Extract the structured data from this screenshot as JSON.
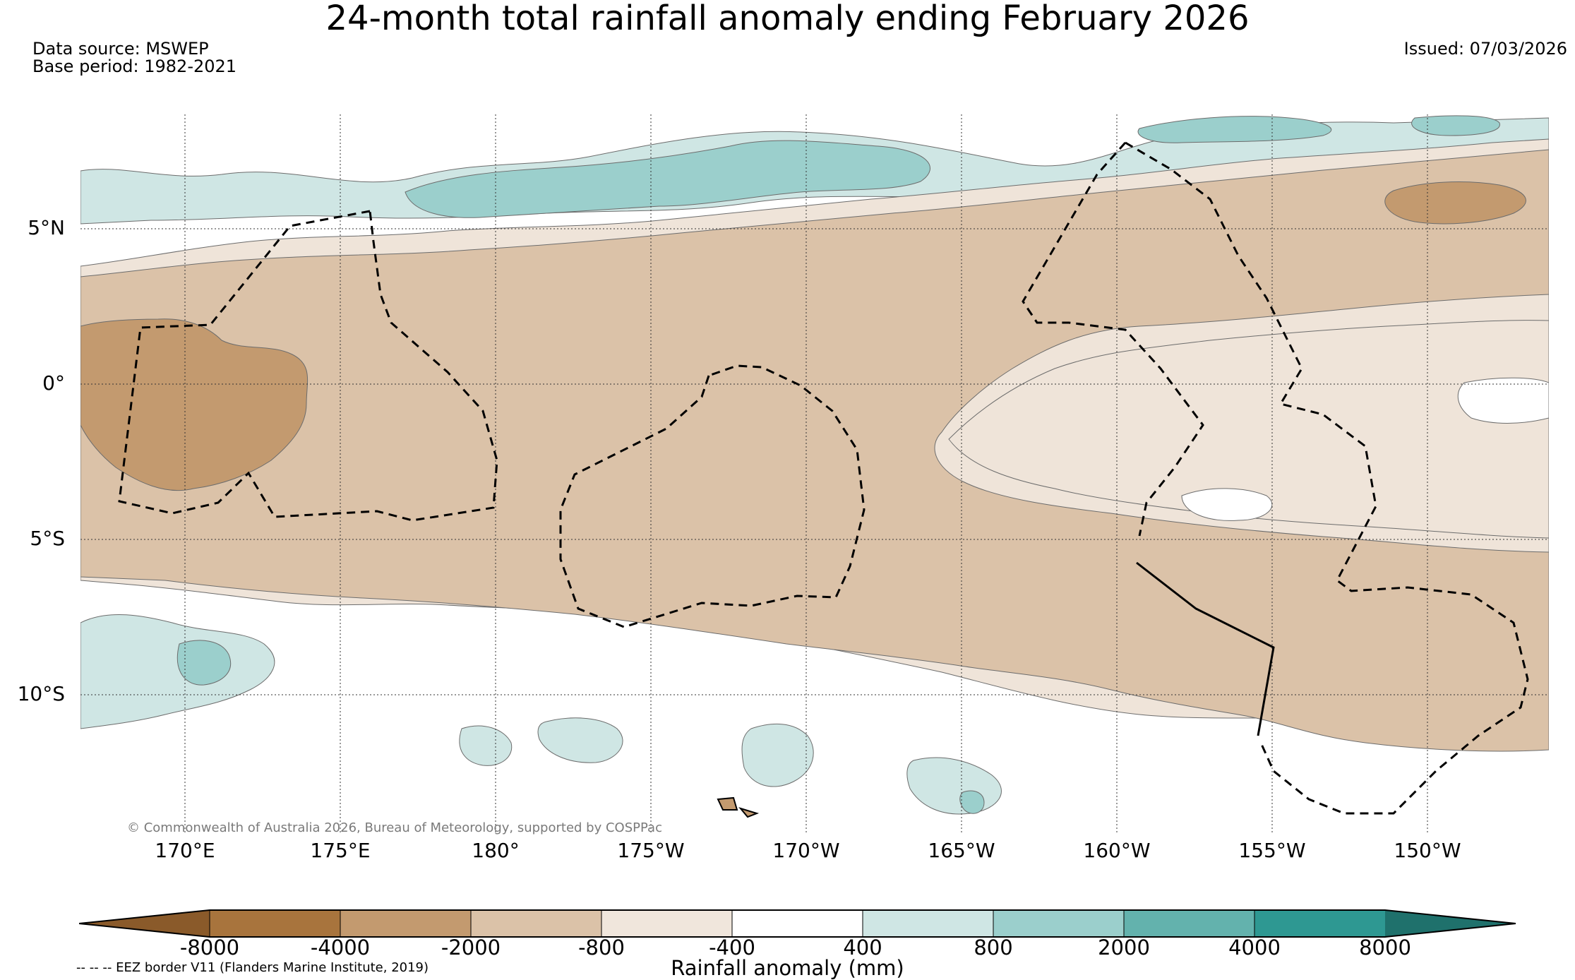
{
  "title": "24-month total rainfall anomaly ending February 2026",
  "data_source": "Data source: MSWEP",
  "base_period": "Base period: 1982-2021",
  "issued": "Issued: 07/03/2026",
  "copyright": "© Commonwealth of Australia 2026, Bureau of Meteorology, supported by COSPPac",
  "latitude_labels": [
    "5°N",
    "0°",
    "5°S",
    "10°S"
  ],
  "longitude_labels": [
    "170°E",
    "175°E",
    "180°",
    "175°W",
    "170°W",
    "165°W",
    "160°W",
    "155°W",
    "150°W"
  ],
  "legend": {
    "ticks": [
      "-8000",
      "-4000",
      "-2000",
      "-800",
      "-400",
      "400",
      "800",
      "2000",
      "4000",
      "8000"
    ],
    "label": "Rainfall anomaly (mm)",
    "colors": [
      "#8a5a2a",
      "#a8743d",
      "#c39a6f",
      "#dbc2a8",
      "#f0e6dc",
      "#ffffff",
      "#cfe6e4",
      "#9bcfcc",
      "#63b2ad",
      "#2e9892",
      "#1f716c"
    ]
  },
  "eez_note": "-- -- -- EEZ border V11 (Flanders Marine Institute, 2019)",
  "map_colors": {
    "tan_light": "#efe4d9",
    "tan_mid": "#dbc2a8",
    "tan_dark": "#c39a6f",
    "teal_light": "#cfe6e4",
    "teal_mid": "#9bcfcc",
    "teal_dark": "#63b2ad"
  }
}
